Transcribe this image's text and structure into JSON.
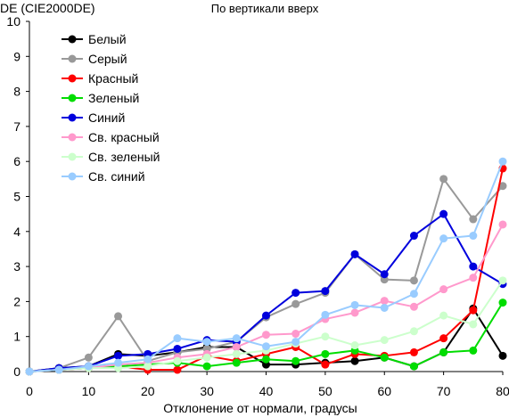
{
  "chart_data": {
    "type": "line",
    "title": "По вертикали вверх",
    "ylabel": "DE (CIE2000DE)",
    "xlabel": "Отклонение от нормали, градусы",
    "xlim": [
      0,
      80
    ],
    "ylim": [
      0,
      10
    ],
    "xticks": [
      0,
      10,
      20,
      30,
      40,
      50,
      60,
      70,
      80
    ],
    "yticks": [
      0,
      1,
      2,
      3,
      4,
      5,
      6,
      7,
      8,
      9,
      10
    ],
    "grid": false,
    "legend_position": "top-left",
    "x": [
      0,
      5,
      10,
      15,
      20,
      25,
      30,
      35,
      40,
      45,
      50,
      55,
      60,
      65,
      70,
      75,
      80
    ],
    "series": [
      {
        "name": "Белый",
        "color": "#000000",
        "values": [
          0.0,
          0.1,
          0.15,
          0.5,
          0.45,
          0.55,
          0.7,
          0.7,
          0.2,
          0.2,
          0.25,
          0.3,
          0.4,
          0.15,
          0.55,
          1.8,
          0.45
        ]
      },
      {
        "name": "Серый",
        "color": "#999999",
        "values": [
          0.0,
          0.1,
          0.4,
          1.58,
          0.3,
          0.55,
          0.65,
          0.85,
          1.55,
          1.93,
          2.25,
          3.35,
          2.63,
          2.6,
          5.5,
          4.35,
          5.3
        ]
      },
      {
        "name": "Красный",
        "color": "#ff0000",
        "values": [
          0.0,
          0.05,
          0.1,
          0.15,
          0.05,
          0.05,
          0.45,
          0.3,
          0.5,
          0.7,
          0.2,
          0.5,
          0.45,
          0.55,
          0.95,
          1.75,
          5.8
        ]
      },
      {
        "name": "Зеленый",
        "color": "#00dd00",
        "values": [
          0.0,
          0.05,
          0.1,
          0.15,
          0.2,
          0.25,
          0.15,
          0.25,
          0.35,
          0.3,
          0.5,
          0.6,
          0.4,
          0.15,
          0.55,
          0.6,
          1.97
        ]
      },
      {
        "name": "Синий",
        "color": "#0000dd",
        "values": [
          0.0,
          0.1,
          0.15,
          0.45,
          0.5,
          0.65,
          0.9,
          0.85,
          1.6,
          2.25,
          2.3,
          3.35,
          2.78,
          3.88,
          4.5,
          3.0,
          2.5
        ]
      },
      {
        "name": "Св. красный",
        "color": "#ff99cc",
        "values": [
          0.0,
          0.05,
          0.1,
          0.2,
          0.25,
          0.4,
          0.5,
          0.7,
          1.05,
          1.08,
          1.5,
          1.68,
          2.02,
          1.85,
          2.35,
          2.68,
          4.2
        ]
      },
      {
        "name": "Св. зеленый",
        "color": "#ccffcc",
        "values": [
          0.0,
          0.05,
          0.1,
          0.1,
          0.15,
          0.3,
          0.4,
          0.5,
          0.6,
          0.8,
          1.0,
          0.75,
          0.9,
          1.15,
          1.6,
          1.35,
          2.6
        ]
      },
      {
        "name": "Св. синий",
        "color": "#99ccff",
        "values": [
          0.0,
          0.05,
          0.15,
          0.25,
          0.35,
          0.95,
          0.85,
          0.95,
          0.72,
          0.85,
          1.62,
          1.9,
          1.82,
          2.22,
          3.8,
          3.88,
          6.0
        ]
      }
    ]
  }
}
